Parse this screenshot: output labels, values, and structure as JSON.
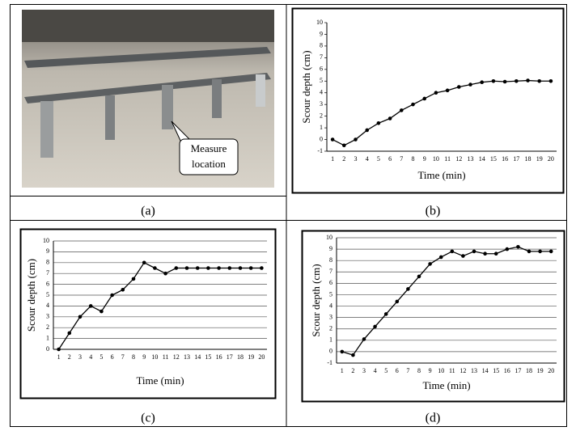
{
  "panel_labels": [
    "(a)",
    "(b)",
    "(c)",
    "(d)"
  ],
  "photo": {
    "annotation": [
      "Measure",
      "location"
    ]
  },
  "chart_data": [
    {
      "type": "line",
      "y_label": "Scour depth (cm)",
      "x_label": "Time (min)",
      "categories": [
        "1",
        "2",
        "3",
        "4",
        "5",
        "6",
        "7",
        "8",
        "9",
        "10",
        "11",
        "12",
        "13",
        "14",
        "15",
        "16",
        "17",
        "18",
        "19",
        "20"
      ],
      "values": [
        0,
        -0.5,
        0,
        0.8,
        1.4,
        1.8,
        2.5,
        3,
        3.5,
        4,
        4.2,
        4.5,
        4.7,
        4.9,
        5,
        4.95,
        5,
        5.05,
        5,
        5
      ],
      "color": "#000000",
      "ylim": [
        -1,
        10
      ],
      "yticks": [
        -1,
        0,
        1,
        2,
        3,
        4,
        5,
        6,
        7,
        8,
        9,
        10
      ],
      "grid": false
    },
    {
      "type": "line",
      "y_label": "Scour depth (cm)",
      "x_label": "Time (min)",
      "categories": [
        "1",
        "2",
        "3",
        "4",
        "5",
        "6",
        "7",
        "8",
        "9",
        "10",
        "11",
        "12",
        "13",
        "14",
        "15",
        "16",
        "17",
        "18",
        "19",
        "20"
      ],
      "values": [
        0,
        1.5,
        3,
        4,
        3.5,
        5,
        5.5,
        6.5,
        8,
        7.5,
        7,
        7.5,
        7.5,
        7.5,
        7.5,
        7.5,
        7.5,
        7.5,
        7.5,
        7.5
      ],
      "color": "#000000",
      "ylim": [
        0,
        10
      ],
      "yticks": [
        0,
        1,
        2,
        3,
        4,
        5,
        6,
        7,
        8,
        9,
        10
      ],
      "grid": true
    },
    {
      "type": "line",
      "y_label": "Scour depth (cm)",
      "x_label": "Time (min)",
      "categories": [
        "1",
        "2",
        "3",
        "4",
        "5",
        "6",
        "7",
        "8",
        "9",
        "10",
        "11",
        "12",
        "13",
        "14",
        "15",
        "16",
        "17",
        "18",
        "19",
        "20"
      ],
      "values": [
        0,
        -0.3,
        1.1,
        2.2,
        3.3,
        4.4,
        5.5,
        6.6,
        7.7,
        8.3,
        8.8,
        8.4,
        8.8,
        8.6,
        8.6,
        9,
        9.2,
        8.8,
        8.8,
        8.8
      ],
      "color": "#000000",
      "ylim": [
        -1,
        10
      ],
      "yticks": [
        -1,
        0,
        1,
        2,
        3,
        4,
        5,
        6,
        7,
        8,
        9,
        10
      ],
      "grid": true
    }
  ]
}
